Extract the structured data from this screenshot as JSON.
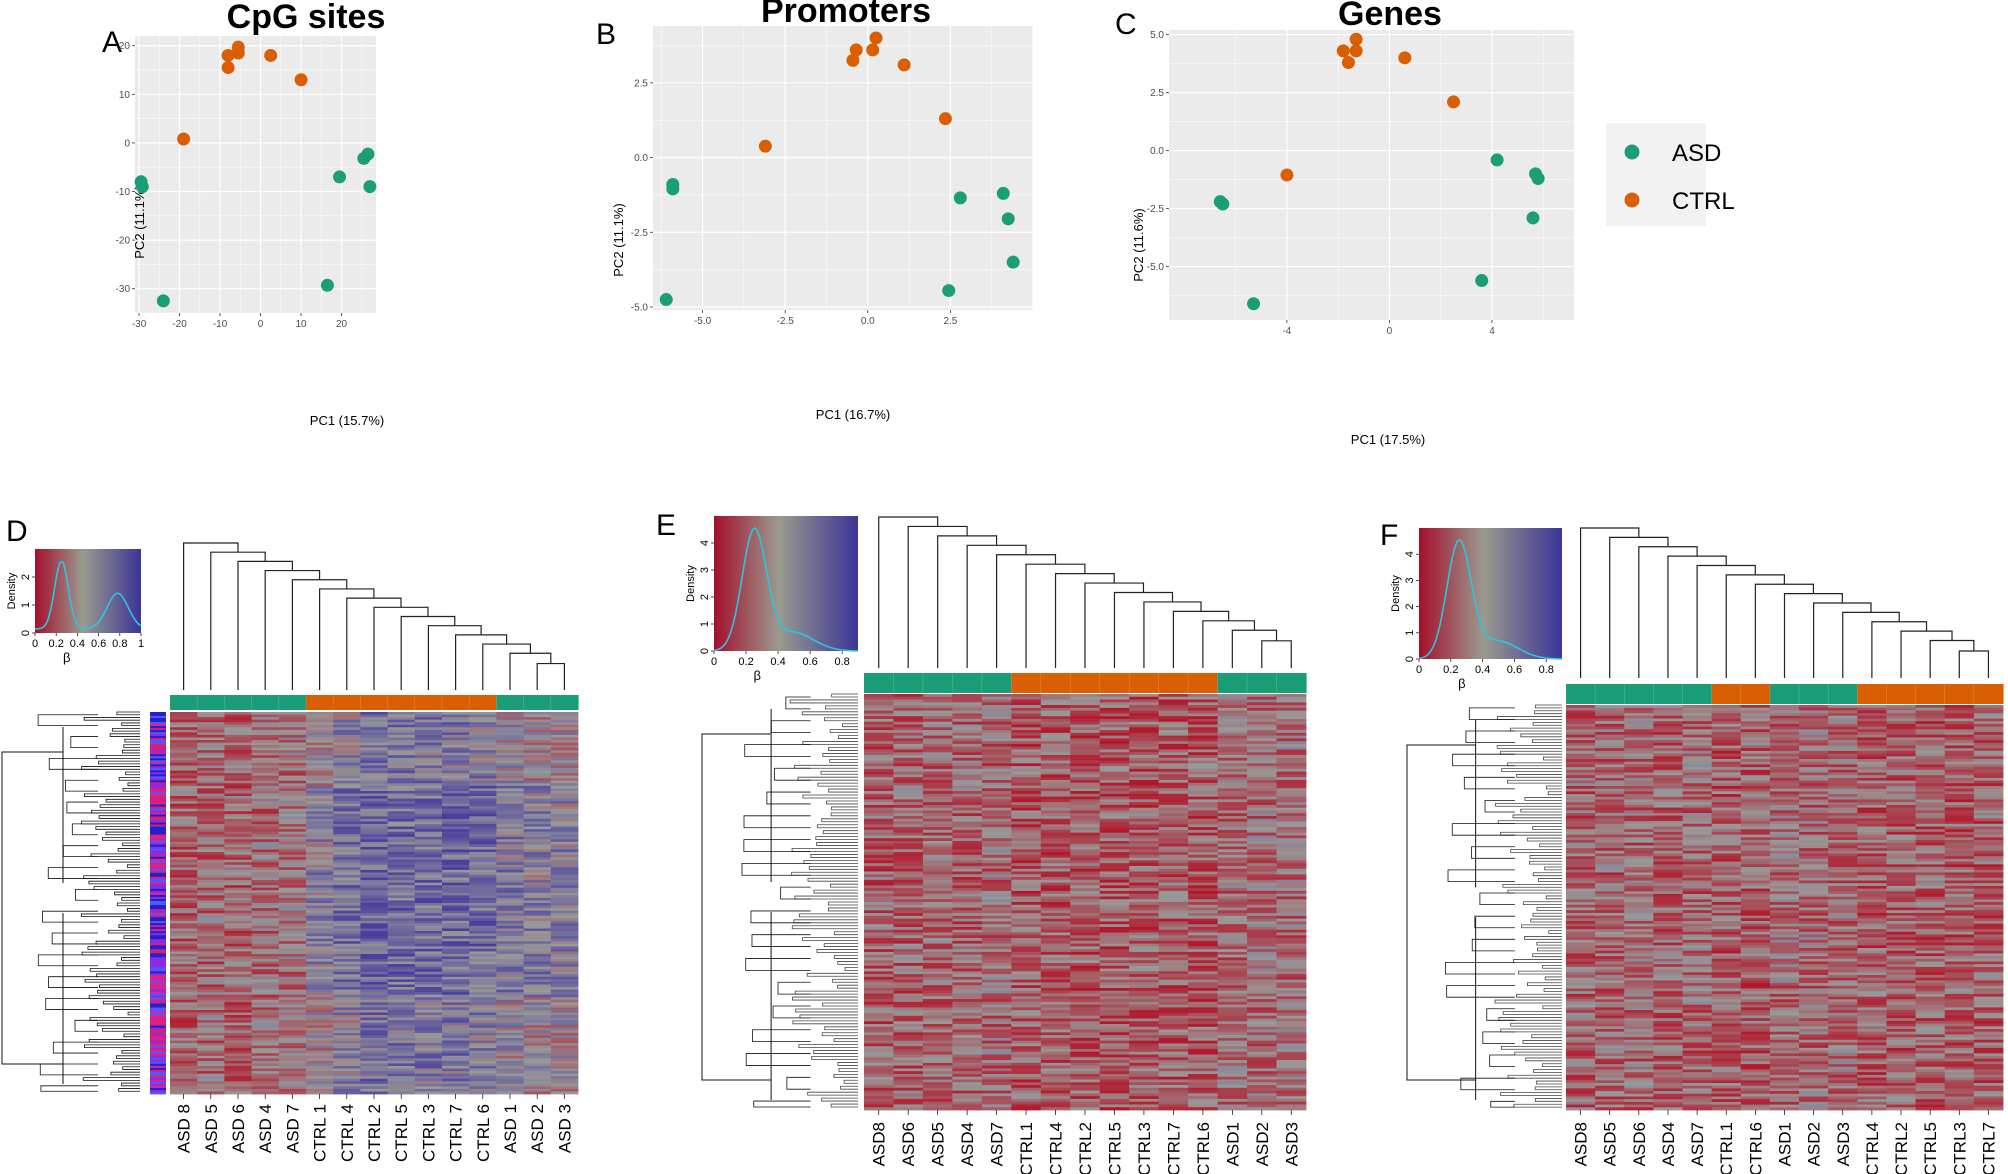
{
  "colors": {
    "asd": "#1b9e77",
    "ctrl": "#d95f02",
    "panel_bg": "#ebebeb",
    "grid": "#ffffff",
    "heat_low": "#b2182b",
    "heat_mid": "#999999",
    "heat_high": "#4a3f9f",
    "density_line": "#2ec4e0"
  },
  "legend": {
    "items": [
      {
        "label": "ASD",
        "group": "asd"
      },
      {
        "label": "CTRL",
        "group": "ctrl"
      }
    ]
  },
  "chart_data": [
    {
      "type": "scatter",
      "panel": "A",
      "title": "CpG sites",
      "xlabel": "PC1 (15.7%)",
      "ylabel": "PC2 (11.1%)",
      "xlim": [
        -31,
        28.5
      ],
      "ylim": [
        -35,
        22
      ],
      "xticks": [
        -30,
        -20,
        -10,
        0,
        10,
        20
      ],
      "yticks": [
        -30,
        -20,
        -10,
        0,
        10,
        20
      ],
      "xtick_labels": [
        "-30",
        "-20",
        "-10",
        "0",
        "10",
        "20"
      ],
      "ytick_labels": [
        "-30",
        "-20",
        "-10",
        "0",
        "10",
        "20"
      ],
      "series": [
        {
          "name": "ASD",
          "group": "asd",
          "points": [
            [
              -29.5,
              -8
            ],
            [
              -29.2,
              -9
            ],
            [
              -24,
              -32.5
            ],
            [
              16.5,
              -29.3
            ],
            [
              19.5,
              -7
            ],
            [
              25.5,
              -3.2
            ],
            [
              26.5,
              -2.3
            ],
            [
              27,
              -9
            ]
          ]
        },
        {
          "name": "CTRL",
          "group": "ctrl",
          "points": [
            [
              -8,
              18
            ],
            [
              -8,
              15.5
            ],
            [
              -5.5,
              19.7
            ],
            [
              -5.5,
              18.5
            ],
            [
              2.5,
              18
            ],
            [
              10,
              13
            ],
            [
              -19,
              0.8
            ]
          ]
        }
      ]
    },
    {
      "type": "scatter",
      "panel": "B",
      "title": "Promoters",
      "xlabel": "PC1 (16.7%)",
      "ylabel": "PC2 (11.1%)",
      "xlim": [
        -6.5,
        5.0
      ],
      "ylim": [
        -5.1,
        4.4
      ],
      "xticks": [
        -5.0,
        -2.5,
        0.0,
        2.5
      ],
      "yticks": [
        -5.0,
        -2.5,
        0.0,
        2.5
      ],
      "xtick_labels": [
        "-5.0",
        "-2.5",
        "0.0",
        "2.5"
      ],
      "ytick_labels": [
        "-5.0",
        "-2.5",
        "0.0",
        "2.5"
      ],
      "series": [
        {
          "name": "ASD",
          "group": "asd",
          "points": [
            [
              -6.1,
              -4.75
            ],
            [
              -5.9,
              -0.9
            ],
            [
              -5.9,
              -1.05
            ],
            [
              2.8,
              -1.35
            ],
            [
              2.45,
              -4.45
            ],
            [
              4.1,
              -1.2
            ],
            [
              4.25,
              -2.05
            ],
            [
              4.4,
              -3.5
            ]
          ]
        },
        {
          "name": "CTRL",
          "group": "ctrl",
          "points": [
            [
              -0.35,
              3.6
            ],
            [
              -0.45,
              3.25
            ],
            [
              0.25,
              4.0
            ],
            [
              0.15,
              3.6
            ],
            [
              1.1,
              3.1
            ],
            [
              2.35,
              1.3
            ],
            [
              -3.1,
              0.38
            ]
          ]
        }
      ]
    },
    {
      "type": "scatter",
      "panel": "C",
      "title": "Genes",
      "xlabel": "PC1 (17.5%)",
      "ylabel": "PC2 (11.6%)",
      "xlim": [
        -8.6,
        7.2
      ],
      "ylim": [
        -7.3,
        5.2
      ],
      "xticks": [
        -4,
        0,
        4
      ],
      "yticks": [
        -5.0,
        -2.5,
        0.0,
        2.5,
        5.0
      ],
      "xtick_labels": [
        "-4",
        "0",
        "4"
      ],
      "ytick_labels": [
        "-5.0",
        "-2.5",
        "0.0",
        "2.5",
        "5.0"
      ],
      "series": [
        {
          "name": "ASD",
          "group": "asd",
          "points": [
            [
              -6.6,
              -2.2
            ],
            [
              -6.5,
              -2.3
            ],
            [
              -5.3,
              -6.6
            ],
            [
              3.6,
              -5.6
            ],
            [
              4.2,
              -0.4
            ],
            [
              5.7,
              -1.0
            ],
            [
              5.8,
              -1.2
            ],
            [
              5.6,
              -2.9
            ]
          ]
        },
        {
          "name": "CTRL",
          "group": "ctrl",
          "points": [
            [
              -1.8,
              4.3
            ],
            [
              -1.6,
              3.8
            ],
            [
              -1.3,
              4.8
            ],
            [
              -1.3,
              4.3
            ],
            [
              0.6,
              4.0
            ],
            [
              2.5,
              2.1
            ],
            [
              -4.0,
              -1.05
            ]
          ]
        }
      ]
    },
    {
      "type": "heatmap",
      "panel": "D",
      "columns": [
        "ASD 8",
        "ASD 5",
        "ASD 6",
        "ASD 4",
        "ASD 7",
        "CTRL 1",
        "CTRL 4",
        "CTRL 2",
        "CTRL 5",
        "CTRL 3",
        "CTRL 7",
        "CTRL 6",
        "ASD 1",
        "ASD 2",
        "ASD 3"
      ],
      "groups": [
        "asd",
        "asd",
        "asd",
        "asd",
        "asd",
        "ctrl",
        "ctrl",
        "ctrl",
        "ctrl",
        "ctrl",
        "ctrl",
        "ctrl",
        "asd",
        "asd",
        "asd"
      ],
      "density": {
        "xlabel": "β",
        "ylabel": "Density",
        "xticks": [
          "0",
          "0.2",
          "0.4",
          "0.6",
          "0.8",
          "1"
        ],
        "yticks": [
          "0",
          "1",
          "2"
        ],
        "shape": "bimodal"
      }
    },
    {
      "type": "heatmap",
      "panel": "E",
      "columns": [
        "ASD8",
        "ASD6",
        "ASD5",
        "ASD4",
        "ASD7",
        "CTRL1",
        "CTRL4",
        "CTRL2",
        "CTRL5",
        "CTRL3",
        "CTRL7",
        "CTRL6",
        "ASD1",
        "ASD2",
        "ASD3"
      ],
      "groups": [
        "asd",
        "asd",
        "asd",
        "asd",
        "asd",
        "ctrl",
        "ctrl",
        "ctrl",
        "ctrl",
        "ctrl",
        "ctrl",
        "ctrl",
        "asd",
        "asd",
        "asd"
      ],
      "density": {
        "xlabel": "β",
        "ylabel": "Density",
        "xticks": [
          "0",
          "0.2",
          "0.4",
          "0.6",
          "0.8"
        ],
        "yticks": [
          "0",
          "1",
          "2",
          "3",
          "4"
        ],
        "shape": "unimodal"
      }
    },
    {
      "type": "heatmap",
      "panel": "F",
      "columns": [
        "ASD8",
        "ASD5",
        "ASD6",
        "ASD4",
        "ASD7",
        "CTRL1",
        "CTRL6",
        "ASD1",
        "ASD2",
        "ASD3",
        "CTRL4",
        "CTRL2",
        "CTRL5",
        "CTRL3",
        "CTRL7"
      ],
      "groups": [
        "asd",
        "asd",
        "asd",
        "asd",
        "asd",
        "ctrl",
        "ctrl",
        "asd",
        "asd",
        "asd",
        "ctrl",
        "ctrl",
        "ctrl",
        "ctrl",
        "ctrl"
      ],
      "density": {
        "xlabel": "β",
        "ylabel": "Density",
        "xticks": [
          "0",
          "0.2",
          "0.4",
          "0.6",
          "0.8"
        ],
        "yticks": [
          "0",
          "1",
          "2",
          "3",
          "4"
        ],
        "shape": "unimodal"
      }
    }
  ]
}
